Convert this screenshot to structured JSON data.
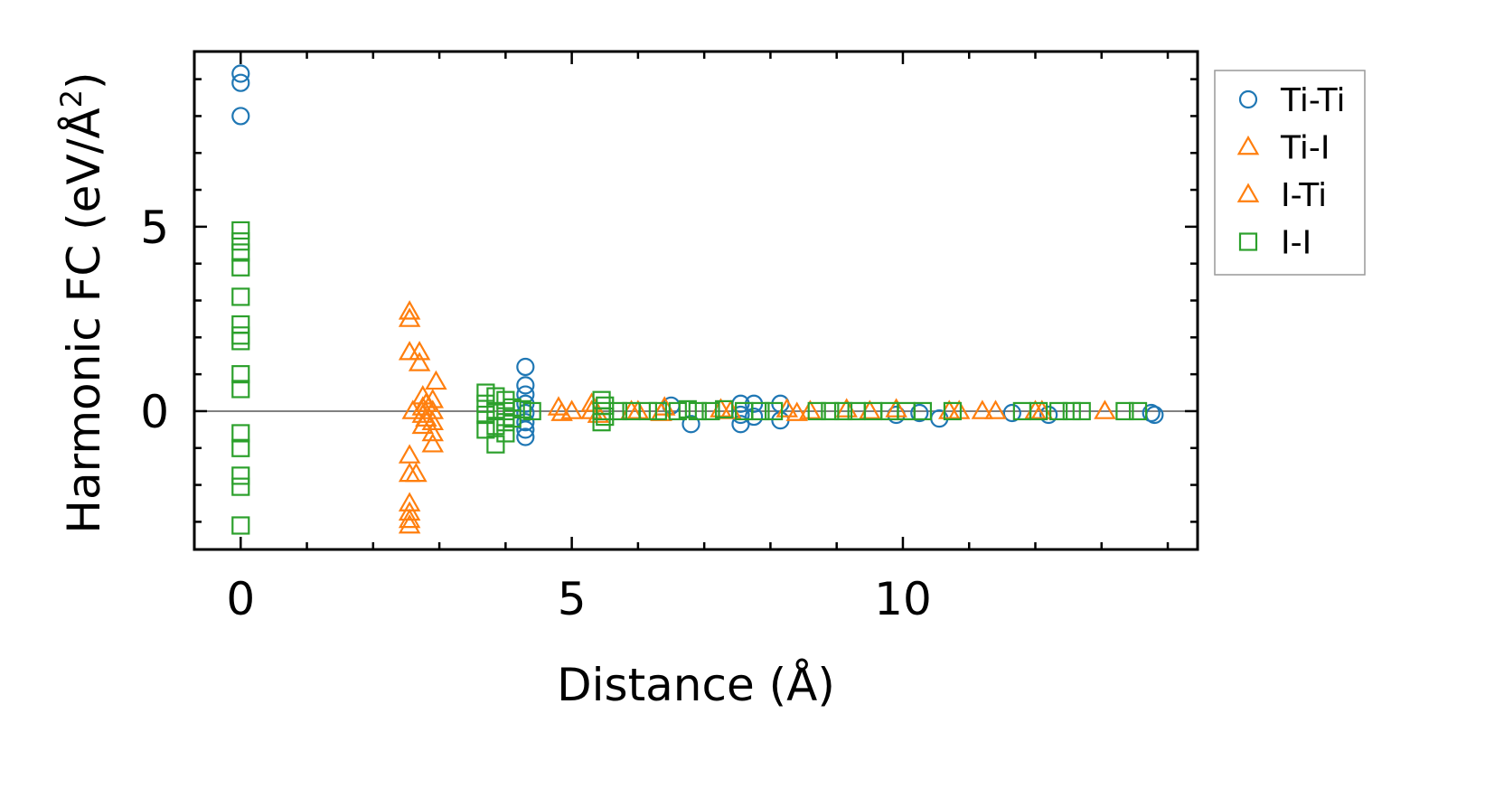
{
  "chart_data": {
    "type": "scatter",
    "xlabel": "Distance (Å)",
    "ylabel_main": "Harmonic FC (eV/Å",
    "ylabel_sup": "2",
    "ylabel_close": ")",
    "xlim": [
      -0.7,
      14.45
    ],
    "ylim": [
      -3.75,
      9.75
    ],
    "x_ticks": [
      0,
      5,
      10
    ],
    "x_tick_labels": [
      "0",
      "5",
      "10"
    ],
    "y_ticks": [
      0,
      5
    ],
    "y_tick_labels": [
      "0",
      "5"
    ],
    "x_minor_step": 1,
    "y_minor_step": 1,
    "zero_line": true,
    "grid": false,
    "legend_position": "outside-right",
    "series": [
      {
        "name": "Ti-Ti",
        "marker": "circle",
        "color": "#1f77b4",
        "points": [
          [
            0,
            9.15
          ],
          [
            0,
            8.9
          ],
          [
            0,
            8.0
          ],
          [
            4.3,
            1.2
          ],
          [
            4.3,
            0.7
          ],
          [
            4.3,
            0.45
          ],
          [
            4.3,
            0.2
          ],
          [
            4.3,
            -0.05
          ],
          [
            4.3,
            -0.3
          ],
          [
            4.3,
            -0.5
          ],
          [
            4.3,
            -0.7
          ],
          [
            6.5,
            0.15
          ],
          [
            6.8,
            -0.35
          ],
          [
            7.55,
            0.2
          ],
          [
            7.55,
            -0.1
          ],
          [
            7.55,
            -0.35
          ],
          [
            7.75,
            0.2
          ],
          [
            7.75,
            -0.15
          ],
          [
            8.15,
            0.2
          ],
          [
            8.15,
            -0.25
          ],
          [
            9.9,
            -0.1
          ],
          [
            10.25,
            -0.05
          ],
          [
            10.55,
            -0.2
          ],
          [
            11.65,
            -0.05
          ],
          [
            12.2,
            -0.1
          ],
          [
            13.75,
            -0.05
          ],
          [
            13.8,
            -0.1
          ]
        ]
      },
      {
        "name": "Ti-I",
        "marker": "triangle",
        "color": "#ff7f0e",
        "points": [
          [
            2.55,
            2.7
          ],
          [
            2.55,
            2.5
          ],
          [
            2.55,
            1.6
          ],
          [
            2.7,
            1.6
          ],
          [
            2.7,
            1.3
          ],
          [
            2.55,
            -1.2
          ],
          [
            2.55,
            -1.7
          ],
          [
            2.65,
            -1.7
          ],
          [
            2.55,
            -2.5
          ],
          [
            2.55,
            -2.75
          ],
          [
            2.55,
            -2.95
          ],
          [
            2.55,
            -3.1
          ],
          [
            2.75,
            0.4
          ],
          [
            2.75,
            0.1
          ],
          [
            2.75,
            -0.1
          ],
          [
            2.75,
            -0.4
          ],
          [
            2.95,
            0.8
          ],
          [
            2.9,
            0.3
          ],
          [
            2.9,
            0.0
          ],
          [
            2.9,
            -0.3
          ],
          [
            2.9,
            -0.6
          ],
          [
            2.9,
            -0.9
          ],
          [
            4.8,
            0.1
          ],
          [
            4.85,
            -0.05
          ],
          [
            5.3,
            0.2
          ],
          [
            5.3,
            0.0
          ],
          [
            5.4,
            -0.1
          ],
          [
            5.9,
            0.0
          ],
          [
            6.4,
            0.1
          ],
          [
            6.35,
            -0.05
          ],
          [
            7.25,
            0.05
          ],
          [
            8.25,
            0.05
          ],
          [
            8.4,
            -0.05
          ],
          [
            9.15,
            0.05
          ],
          [
            9.9,
            0.05
          ],
          [
            10.85,
            0.0
          ],
          [
            11.2,
            0.0
          ],
          [
            11.4,
            0.0
          ],
          [
            12.0,
            0.0
          ],
          [
            13.05,
            0.0
          ]
        ]
      },
      {
        "name": "I-Ti",
        "marker": "triangle",
        "color": "#ff7f0e",
        "points": [
          [
            2.6,
            0.0
          ],
          [
            2.8,
            0.2
          ],
          [
            2.8,
            -0.2
          ],
          [
            5.0,
            0.0
          ],
          [
            6.0,
            0.0
          ],
          [
            7.4,
            0.0
          ],
          [
            8.6,
            0.0
          ],
          [
            9.5,
            0.0
          ],
          [
            10.7,
            0.0
          ],
          [
            12.1,
            0.0
          ]
        ]
      },
      {
        "name": "I-I",
        "marker": "square",
        "color": "#2ca02c",
        "points": [
          [
            0,
            4.9
          ],
          [
            0,
            4.6
          ],
          [
            0,
            4.3
          ],
          [
            0,
            3.9
          ],
          [
            0,
            3.1
          ],
          [
            0,
            2.35
          ],
          [
            0,
            2.05
          ],
          [
            0,
            1.9
          ],
          [
            0,
            1.0
          ],
          [
            0,
            0.6
          ],
          [
            0,
            -0.6
          ],
          [
            0,
            -1.0
          ],
          [
            0,
            -1.75
          ],
          [
            0,
            -2.05
          ],
          [
            0,
            -3.1
          ],
          [
            3.7,
            0.5
          ],
          [
            3.7,
            0.2
          ],
          [
            3.7,
            -0.1
          ],
          [
            3.7,
            -0.5
          ],
          [
            3.85,
            0.4
          ],
          [
            3.85,
            0.0
          ],
          [
            3.85,
            -0.4
          ],
          [
            3.85,
            -0.9
          ],
          [
            4.0,
            0.3
          ],
          [
            4.0,
            0.0
          ],
          [
            4.0,
            -0.3
          ],
          [
            4.0,
            -0.6
          ],
          [
            4.1,
            0.1
          ],
          [
            4.1,
            -0.2
          ],
          [
            4.25,
            0.05
          ],
          [
            4.4,
            0.0
          ],
          [
            5.45,
            0.3
          ],
          [
            5.45,
            0.0
          ],
          [
            5.45,
            -0.3
          ],
          [
            5.5,
            0.15
          ],
          [
            5.5,
            -0.15
          ],
          [
            5.7,
            0.0
          ],
          [
            5.9,
            0.0
          ],
          [
            6.15,
            0.0
          ],
          [
            6.3,
            0.0
          ],
          [
            6.6,
            0.0
          ],
          [
            6.75,
            0.05
          ],
          [
            6.9,
            0.0
          ],
          [
            7.1,
            0.0
          ],
          [
            7.3,
            0.05
          ],
          [
            7.6,
            0.0
          ],
          [
            7.85,
            0.0
          ],
          [
            8.05,
            0.0
          ],
          [
            8.7,
            0.0
          ],
          [
            8.9,
            0.0
          ],
          [
            9.1,
            0.0
          ],
          [
            9.3,
            0.0
          ],
          [
            9.55,
            0.0
          ],
          [
            9.8,
            0.0
          ],
          [
            10.05,
            0.0
          ],
          [
            10.3,
            0.0
          ],
          [
            10.75,
            0.0
          ],
          [
            11.8,
            0.0
          ],
          [
            12.05,
            0.0
          ],
          [
            12.35,
            0.0
          ],
          [
            12.55,
            0.0
          ],
          [
            12.7,
            0.0
          ],
          [
            13.35,
            0.0
          ],
          [
            13.55,
            0.0
          ]
        ]
      }
    ]
  }
}
